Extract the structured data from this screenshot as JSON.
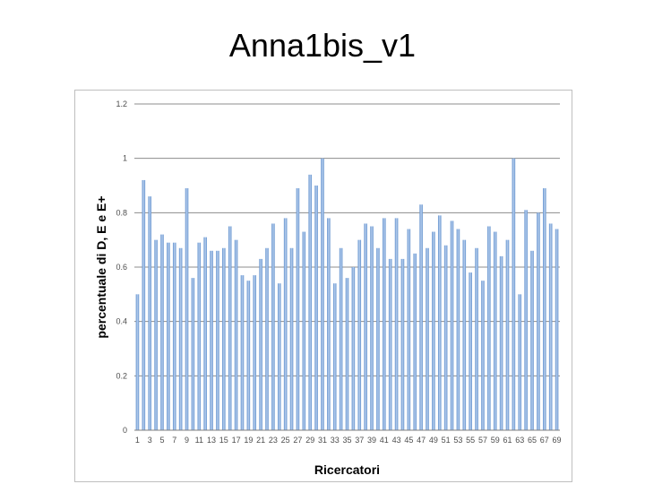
{
  "slide": {
    "title": "Anna1bis_v1"
  },
  "chart_data": {
    "type": "bar",
    "title": "",
    "xlabel": "Ricercatori",
    "ylabel": "percentuale di D, E e E+",
    "ylim": [
      0,
      1.2
    ],
    "yticks": [
      "0",
      "0.2",
      "0.4",
      "0.6",
      "0.8",
      "1",
      "1.2"
    ],
    "grid": true,
    "legend": "none",
    "bar_color": "#7fa6d8",
    "categories": [
      "1",
      "2",
      "3",
      "4",
      "5",
      "6",
      "7",
      "8",
      "9",
      "10",
      "11",
      "12",
      "13",
      "14",
      "15",
      "16",
      "17",
      "18",
      "19",
      "20",
      "21",
      "22",
      "23",
      "24",
      "25",
      "26",
      "27",
      "28",
      "29",
      "30",
      "31",
      "32",
      "33",
      "34",
      "35",
      "36",
      "37",
      "38",
      "39",
      "40",
      "41",
      "42",
      "43",
      "44",
      "45",
      "46",
      "47",
      "48",
      "49",
      "50",
      "51",
      "52",
      "53",
      "54",
      "55",
      "56",
      "57",
      "58",
      "59",
      "60",
      "61",
      "62",
      "63",
      "64",
      "65",
      "66",
      "67",
      "68",
      "69"
    ],
    "tick_labels": [
      "1",
      "3",
      "5",
      "7",
      "9",
      "11",
      "13",
      "15",
      "17",
      "19",
      "21",
      "23",
      "25",
      "27",
      "29",
      "31",
      "33",
      "35",
      "37",
      "39",
      "41",
      "43",
      "45",
      "47",
      "49",
      "51",
      "53",
      "55",
      "57",
      "59",
      "61",
      "63",
      "65",
      "67",
      "69"
    ],
    "values": [
      0.5,
      0.92,
      0.86,
      0.7,
      0.72,
      0.69,
      0.69,
      0.67,
      0.89,
      0.56,
      0.69,
      0.71,
      0.66,
      0.66,
      0.67,
      0.75,
      0.7,
      0.57,
      0.55,
      0.57,
      0.63,
      0.67,
      0.76,
      0.54,
      0.78,
      0.67,
      0.89,
      0.73,
      0.94,
      0.9,
      1.0,
      0.78,
      0.54,
      0.67,
      0.56,
      0.6,
      0.7,
      0.76,
      0.75,
      0.67,
      0.78,
      0.63,
      0.78,
      0.63,
      0.74,
      0.65,
      0.83,
      0.67,
      0.73,
      0.79,
      0.68,
      0.77,
      0.74,
      0.7,
      0.58,
      0.67,
      0.55,
      0.75,
      0.73,
      0.64,
      0.7,
      1.0,
      0.5,
      0.81,
      0.66,
      0.8,
      0.89,
      0.76,
      0.74
    ]
  }
}
